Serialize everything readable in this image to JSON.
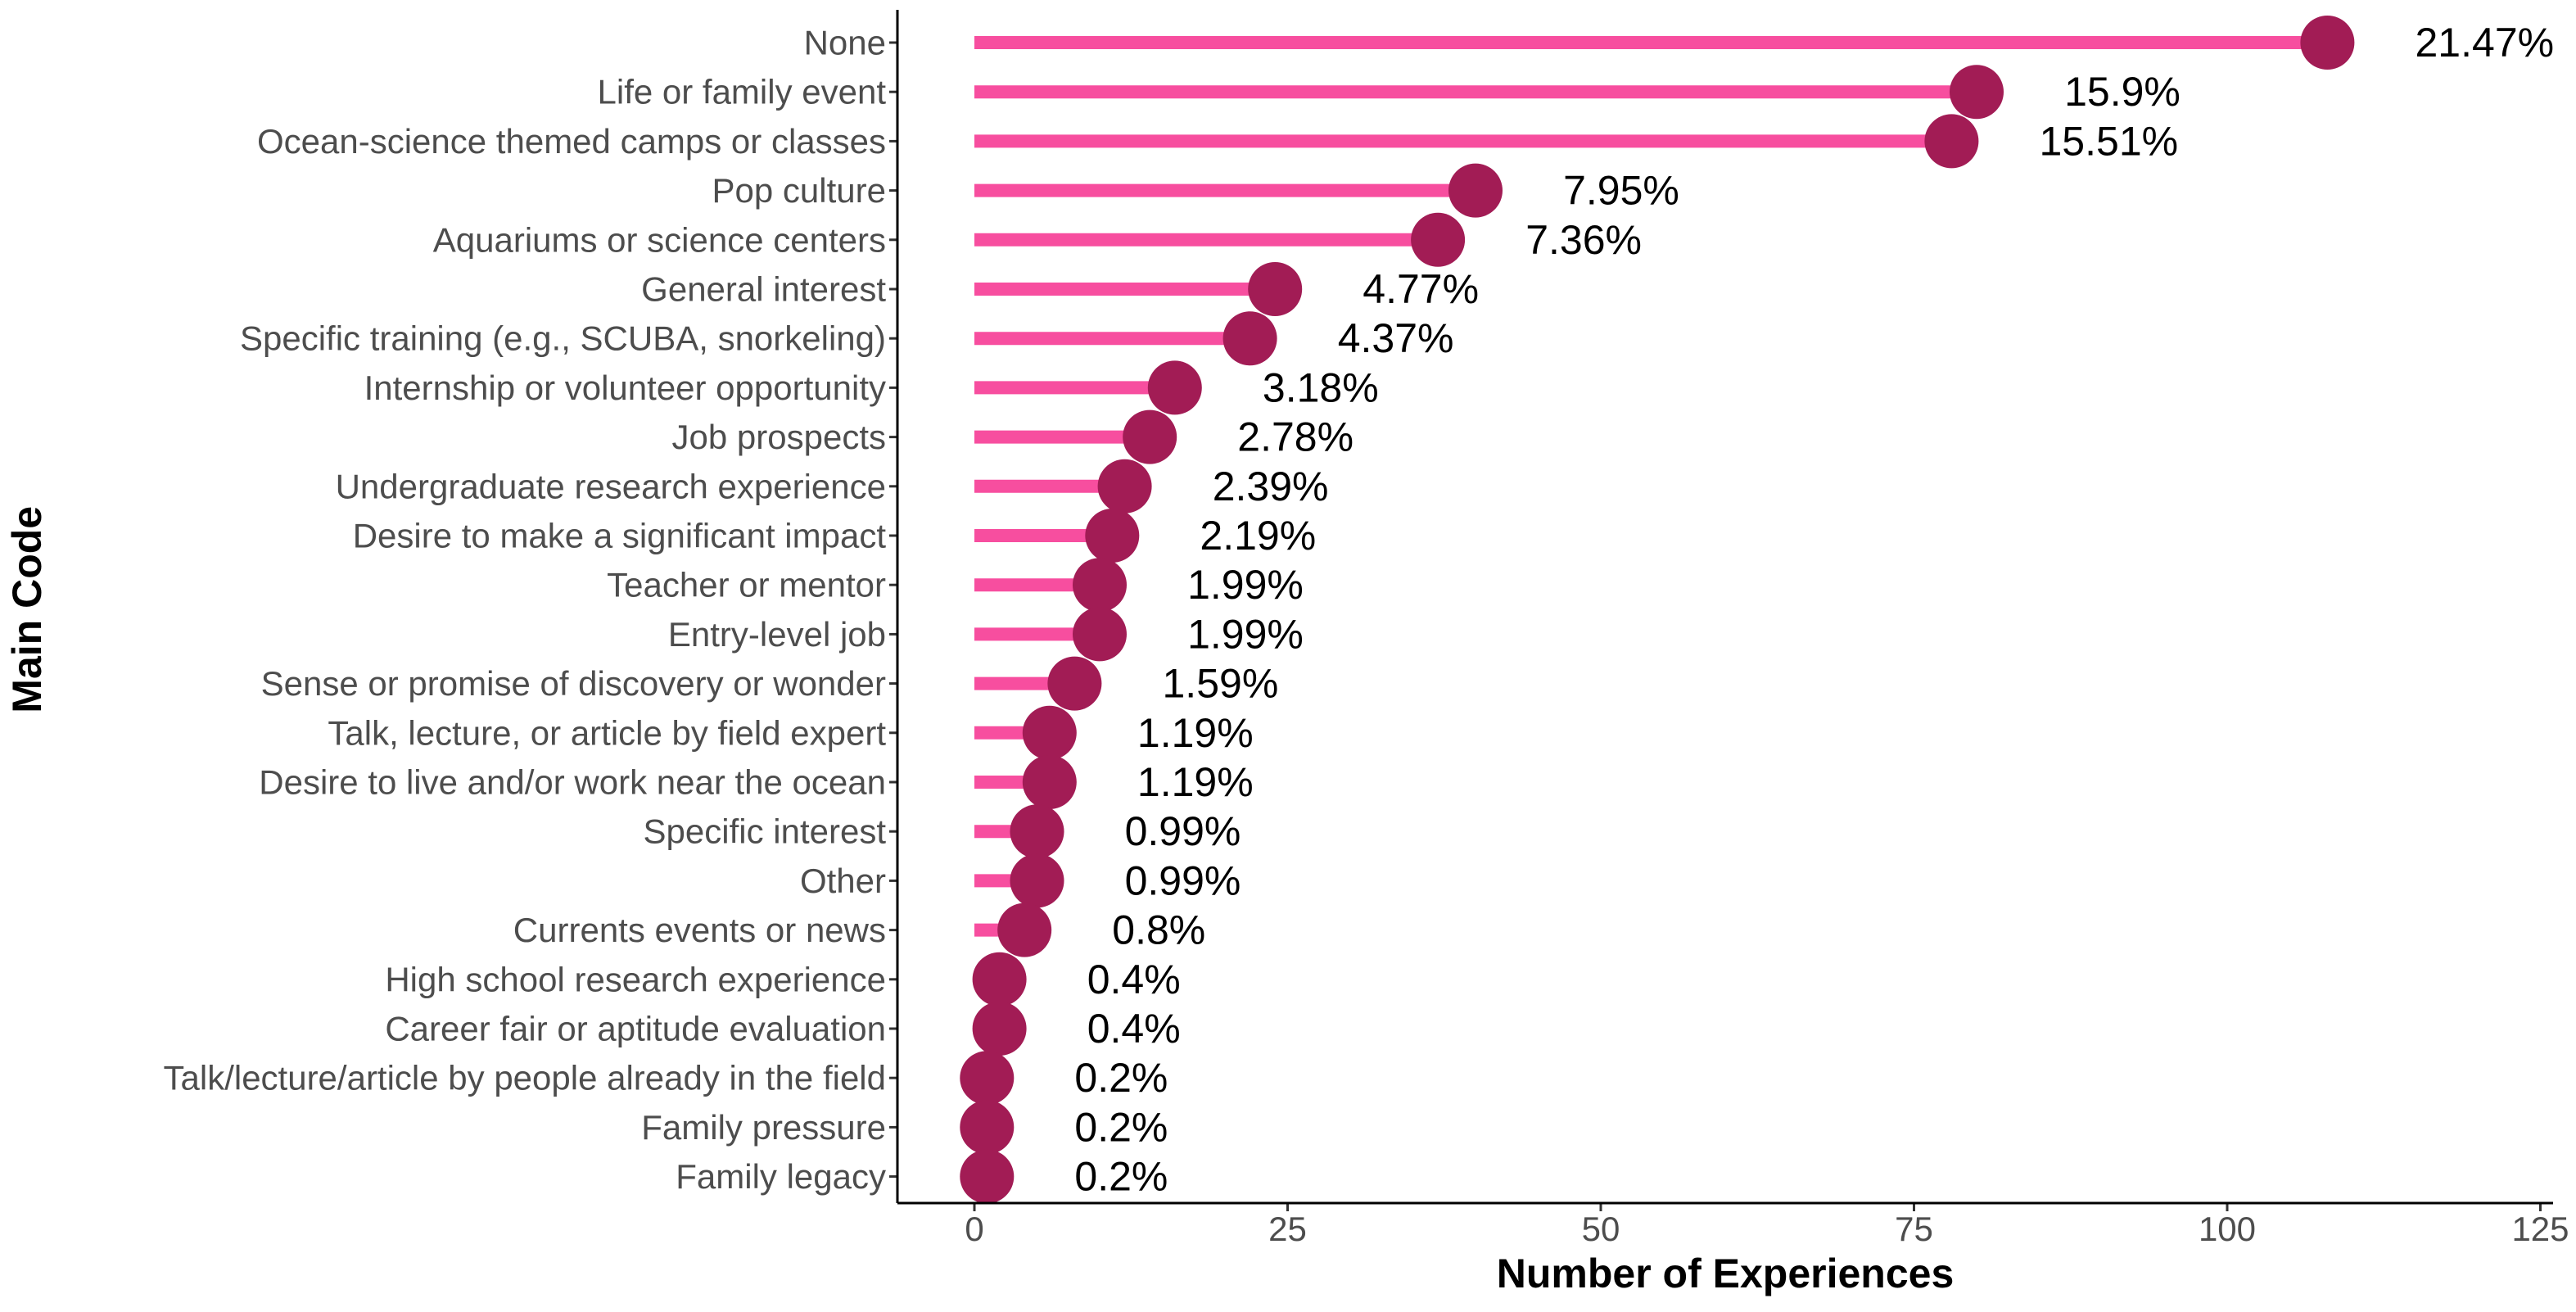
{
  "chart_data": {
    "type": "lollipop",
    "xlabel": "Number of Experiences",
    "ylabel": "Main Code",
    "xlim": [
      -6,
      125
    ],
    "x_ticks": [
      0,
      25,
      50,
      75,
      100,
      125
    ],
    "x_tick_labels": [
      "0",
      "25",
      "50",
      "75",
      "100",
      "125"
    ],
    "categories": [
      "None",
      "Life or family event",
      "Ocean-science themed camps or classes",
      "Pop culture",
      "Aquariums or science centers",
      "General interest",
      "Specific training (e.g., SCUBA, snorkeling)",
      "Internship or volunteer opportunity",
      "Job prospects",
      "Undergraduate research experience",
      "Desire to make a significant impact",
      "Teacher or mentor",
      "Entry-level job",
      "Sense or promise of discovery or wonder",
      "Talk, lecture, or article by field expert",
      "Desire to live and/or work near the ocean",
      "Specific interest",
      "Other",
      "Currents events or news",
      "High school research experience",
      "Career fair or aptitude evaluation",
      "Talk/lecture/article by people already in the field",
      "Family pressure",
      "Family legacy"
    ],
    "values": [
      108,
      80,
      78,
      40,
      37,
      24,
      22,
      16,
      14,
      12,
      11,
      10,
      10,
      8,
      6,
      6,
      5,
      5,
      4,
      2,
      2,
      1,
      1,
      1
    ],
    "labels": [
      "21.47%",
      "15.9%",
      "15.51%",
      "7.95%",
      "7.36%",
      "4.77%",
      "4.37%",
      "3.18%",
      "2.78%",
      "2.39%",
      "2.19%",
      "1.99%",
      "1.99%",
      "1.59%",
      "1.19%",
      "1.19%",
      "0.99%",
      "0.99%",
      "0.8%",
      "0.4%",
      "0.4%",
      "0.2%",
      "0.2%",
      "0.2%"
    ],
    "label_offset": 7,
    "colors": {
      "stem": "#f74e9f",
      "point": "#a21c55"
    }
  }
}
